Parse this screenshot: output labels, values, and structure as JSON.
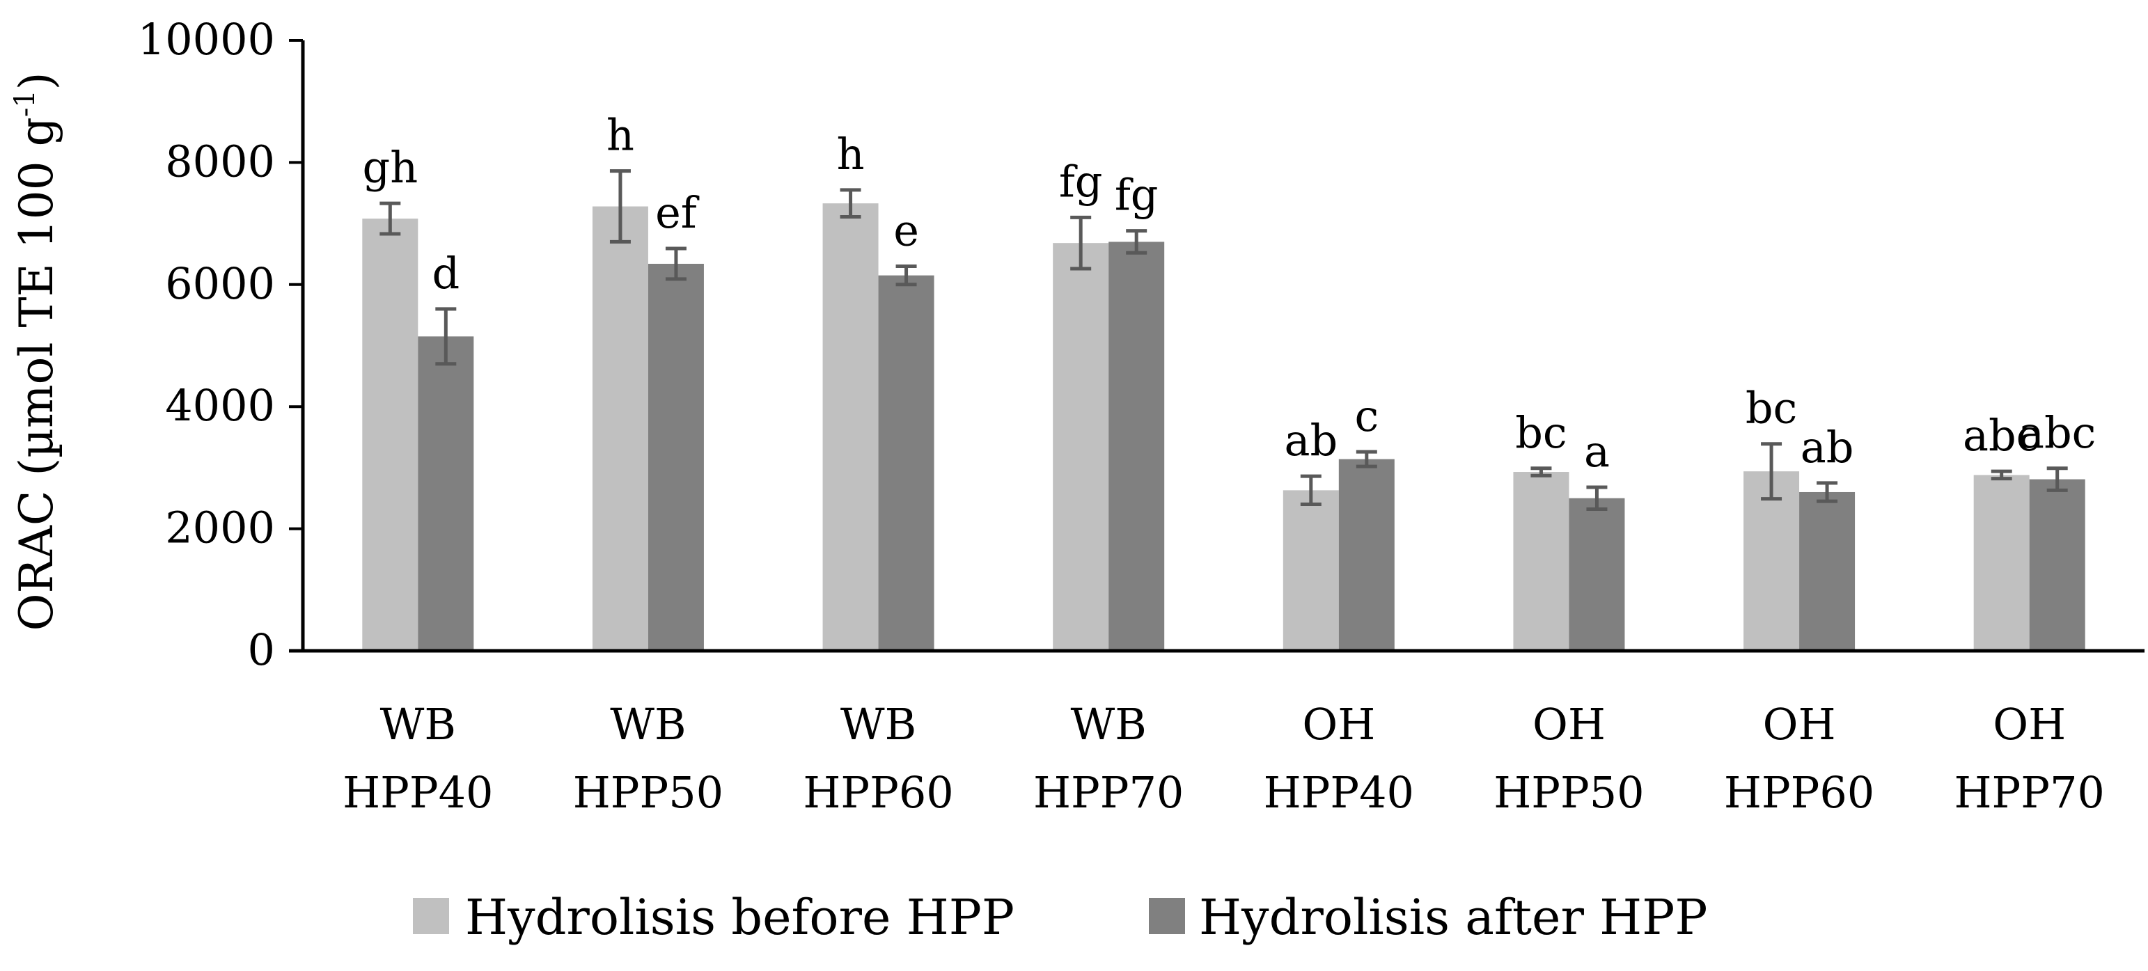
{
  "chart_data": {
    "type": "bar",
    "title": "",
    "xlabel": "",
    "ylabel": {
      "text_before": "ORAC (µmol TE 100 g",
      "superscript": "-1",
      "text_after": ")"
    },
    "ylim": [
      0,
      10000
    ],
    "yticks": [
      "0",
      "2000",
      "4000",
      "6000",
      "8000",
      "10000"
    ],
    "grid": false,
    "legend_position": "bottom",
    "categories": [
      [
        "WB",
        "HPP40"
      ],
      [
        "WB",
        "HPP50"
      ],
      [
        "WB",
        "HPP60"
      ],
      [
        "WB",
        "HPP70"
      ],
      [
        "OH",
        "HPP40"
      ],
      [
        "OH",
        "HPP50"
      ],
      [
        "OH",
        "HPP60"
      ],
      [
        "OH",
        "HPP70"
      ]
    ],
    "series": [
      {
        "name": "Hydrolisis before HPP",
        "color": "#c0c0c0",
        "values": [
          7080,
          7280,
          7330,
          6680,
          2630,
          2930,
          2940,
          2880
        ],
        "errors": [
          250,
          580,
          220,
          420,
          230,
          60,
          450,
          60
        ],
        "letters": [
          "gh",
          "h",
          "h",
          "fg",
          "ab",
          "bc",
          "bc",
          "abc"
        ]
      },
      {
        "name": "Hydrolisis after HPP",
        "color": "#808080",
        "values": [
          5150,
          6340,
          6150,
          6700,
          3140,
          2500,
          2600,
          2810
        ],
        "errors": [
          450,
          250,
          150,
          180,
          120,
          180,
          150,
          180
        ],
        "letters": [
          "d",
          "ef",
          "e",
          "fg",
          "c",
          "a",
          "ab",
          "abc"
        ]
      }
    ],
    "errorbar_color": "#595959"
  }
}
